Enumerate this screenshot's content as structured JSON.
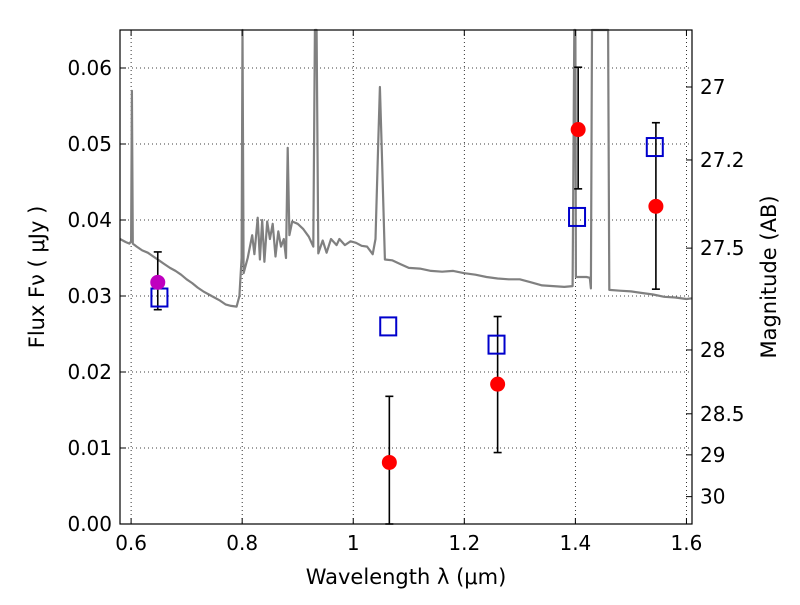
{
  "chart_data": {
    "type": "scatter",
    "title": "",
    "xlabel": "Wavelength  λ (μm)",
    "ylabel": "Flux  Fν  ( μJy )",
    "ylabel_right": "Magnitude (AB)",
    "xlim": [
      0.58,
      1.61
    ],
    "ylim": [
      0.0,
      0.065
    ],
    "grid": true,
    "x_ticks": [
      0.6,
      0.8,
      1.0,
      1.2,
      1.4,
      1.6
    ],
    "x_tick_labels": [
      "0.6",
      "0.8",
      "1",
      "1.2",
      "1.4",
      "1.6"
    ],
    "y_ticks": [
      0.0,
      0.01,
      0.02,
      0.03,
      0.04,
      0.05,
      0.06
    ],
    "y_tick_labels": [
      "0.00",
      "0.01",
      "0.02",
      "0.03",
      "0.04",
      "0.05",
      "0.06"
    ],
    "right_axis": {
      "ticks": [
        {
          "flux": 0.0575,
          "label": "27"
        },
        {
          "flux": 0.0479,
          "label": "27.2"
        },
        {
          "flux": 0.0363,
          "label": "27.5"
        },
        {
          "flux": 0.0229,
          "label": "28"
        },
        {
          "flux": 0.0145,
          "label": "28.5"
        },
        {
          "flux": 0.0091,
          "label": "29"
        },
        {
          "flux": 0.0036,
          "label": "30"
        }
      ]
    },
    "colors": {
      "model": "#808080",
      "observed": "#ff0000",
      "first_point": "#bf00bf",
      "model_photometry": "#0000cc",
      "errorbar": "#000000"
    },
    "series": [
      {
        "kind": "line",
        "points": [
          [
            0.58,
            0.0375
          ],
          [
            0.59,
            0.0371
          ],
          [
            0.597,
            0.0369
          ],
          [
            0.6,
            0.0372
          ],
          [
            0.6015,
            0.057
          ],
          [
            0.603,
            0.0369
          ],
          [
            0.61,
            0.0365
          ],
          [
            0.62,
            0.036
          ],
          [
            0.63,
            0.0357
          ],
          [
            0.64,
            0.0352
          ],
          [
            0.65,
            0.0347
          ],
          [
            0.66,
            0.0342
          ],
          [
            0.67,
            0.0337
          ],
          [
            0.68,
            0.0333
          ],
          [
            0.69,
            0.0328
          ],
          [
            0.7,
            0.0322
          ],
          [
            0.71,
            0.0317
          ],
          [
            0.72,
            0.0311
          ],
          [
            0.73,
            0.0306
          ],
          [
            0.74,
            0.0302
          ],
          [
            0.75,
            0.0298
          ],
          [
            0.76,
            0.0294
          ],
          [
            0.77,
            0.0289
          ],
          [
            0.78,
            0.0287
          ],
          [
            0.79,
            0.0286
          ],
          [
            0.795,
            0.03
          ],
          [
            0.799,
            0.035
          ],
          [
            0.8005,
            0.065
          ],
          [
            0.8025,
            0.033
          ],
          [
            0.81,
            0.035
          ],
          [
            0.818,
            0.038
          ],
          [
            0.822,
            0.0355
          ],
          [
            0.828,
            0.0403
          ],
          [
            0.832,
            0.0348
          ],
          [
            0.836,
            0.04
          ],
          [
            0.84,
            0.0345
          ],
          [
            0.845,
            0.0398
          ],
          [
            0.85,
            0.0375
          ],
          [
            0.855,
            0.0395
          ],
          [
            0.86,
            0.0352
          ],
          [
            0.865,
            0.0385
          ],
          [
            0.87,
            0.0365
          ],
          [
            0.875,
            0.0375
          ],
          [
            0.879,
            0.035
          ],
          [
            0.882,
            0.0495
          ],
          [
            0.885,
            0.038
          ],
          [
            0.89,
            0.0398
          ],
          [
            0.9,
            0.0395
          ],
          [
            0.91,
            0.0388
          ],
          [
            0.92,
            0.0378
          ],
          [
            0.928,
            0.0365
          ],
          [
            0.931,
            0.065
          ],
          [
            0.934,
            0.065
          ],
          [
            0.937,
            0.0356
          ],
          [
            0.945,
            0.0373
          ],
          [
            0.952,
            0.0357
          ],
          [
            0.96,
            0.0375
          ],
          [
            0.97,
            0.0367
          ],
          [
            0.975,
            0.0375
          ],
          [
            0.985,
            0.0367
          ],
          [
            0.995,
            0.0372
          ],
          [
            1.005,
            0.037
          ],
          [
            1.015,
            0.0366
          ],
          [
            1.025,
            0.0365
          ],
          [
            1.035,
            0.0355
          ],
          [
            1.04,
            0.0375
          ],
          [
            1.045,
            0.05
          ],
          [
            1.048,
            0.0575
          ],
          [
            1.051,
            0.05
          ],
          [
            1.057,
            0.0348
          ],
          [
            1.07,
            0.0347
          ],
          [
            1.085,
            0.0342
          ],
          [
            1.1,
            0.0337
          ],
          [
            1.12,
            0.0336
          ],
          [
            1.14,
            0.0333
          ],
          [
            1.16,
            0.0332
          ],
          [
            1.18,
            0.0333
          ],
          [
            1.2,
            0.033
          ],
          [
            1.22,
            0.0328
          ],
          [
            1.24,
            0.0325
          ],
          [
            1.26,
            0.0323
          ],
          [
            1.28,
            0.0322
          ],
          [
            1.3,
            0.0322
          ],
          [
            1.32,
            0.0318
          ],
          [
            1.34,
            0.0314
          ],
          [
            1.36,
            0.0313
          ],
          [
            1.38,
            0.0312
          ],
          [
            1.395,
            0.0313
          ],
          [
            1.398,
            0.065
          ],
          [
            1.4,
            0.065
          ],
          [
            1.401,
            0.0325
          ],
          [
            1.42,
            0.0325
          ],
          [
            1.426,
            0.0324
          ],
          [
            1.428,
            0.031
          ],
          [
            1.43,
            0.065
          ],
          [
            1.459,
            0.065
          ],
          [
            1.461,
            0.0308
          ],
          [
            1.48,
            0.0307
          ],
          [
            1.5,
            0.0306
          ],
          [
            1.52,
            0.0304
          ],
          [
            1.54,
            0.0302
          ],
          [
            1.56,
            0.0299
          ],
          [
            1.58,
            0.0298
          ],
          [
            1.6,
            0.0296
          ],
          [
            1.61,
            0.0297
          ]
        ]
      },
      {
        "kind": "observed",
        "points": [
          {
            "x": 0.648,
            "y": 0.0318,
            "err_lo": 0.0282,
            "err_hi": 0.0358
          },
          {
            "x": 1.065,
            "y": 0.0081,
            "err_lo": 0.0,
            "err_hi": 0.0168
          },
          {
            "x": 1.26,
            "y": 0.0184,
            "err_lo": 0.0094,
            "err_hi": 0.0273
          },
          {
            "x": 1.405,
            "y": 0.0519,
            "err_lo": 0.0441,
            "err_hi": 0.0601
          },
          {
            "x": 1.545,
            "y": 0.0418,
            "err_lo": 0.0309,
            "err_hi": 0.0528
          }
        ]
      },
      {
        "kind": "model_photometry",
        "points": [
          {
            "x": 0.651,
            "y": 0.0298
          },
          {
            "x": 1.063,
            "y": 0.026
          },
          {
            "x": 1.258,
            "y": 0.0236
          },
          {
            "x": 1.403,
            "y": 0.0404
          },
          {
            "x": 1.543,
            "y": 0.0496
          }
        ]
      }
    ]
  }
}
